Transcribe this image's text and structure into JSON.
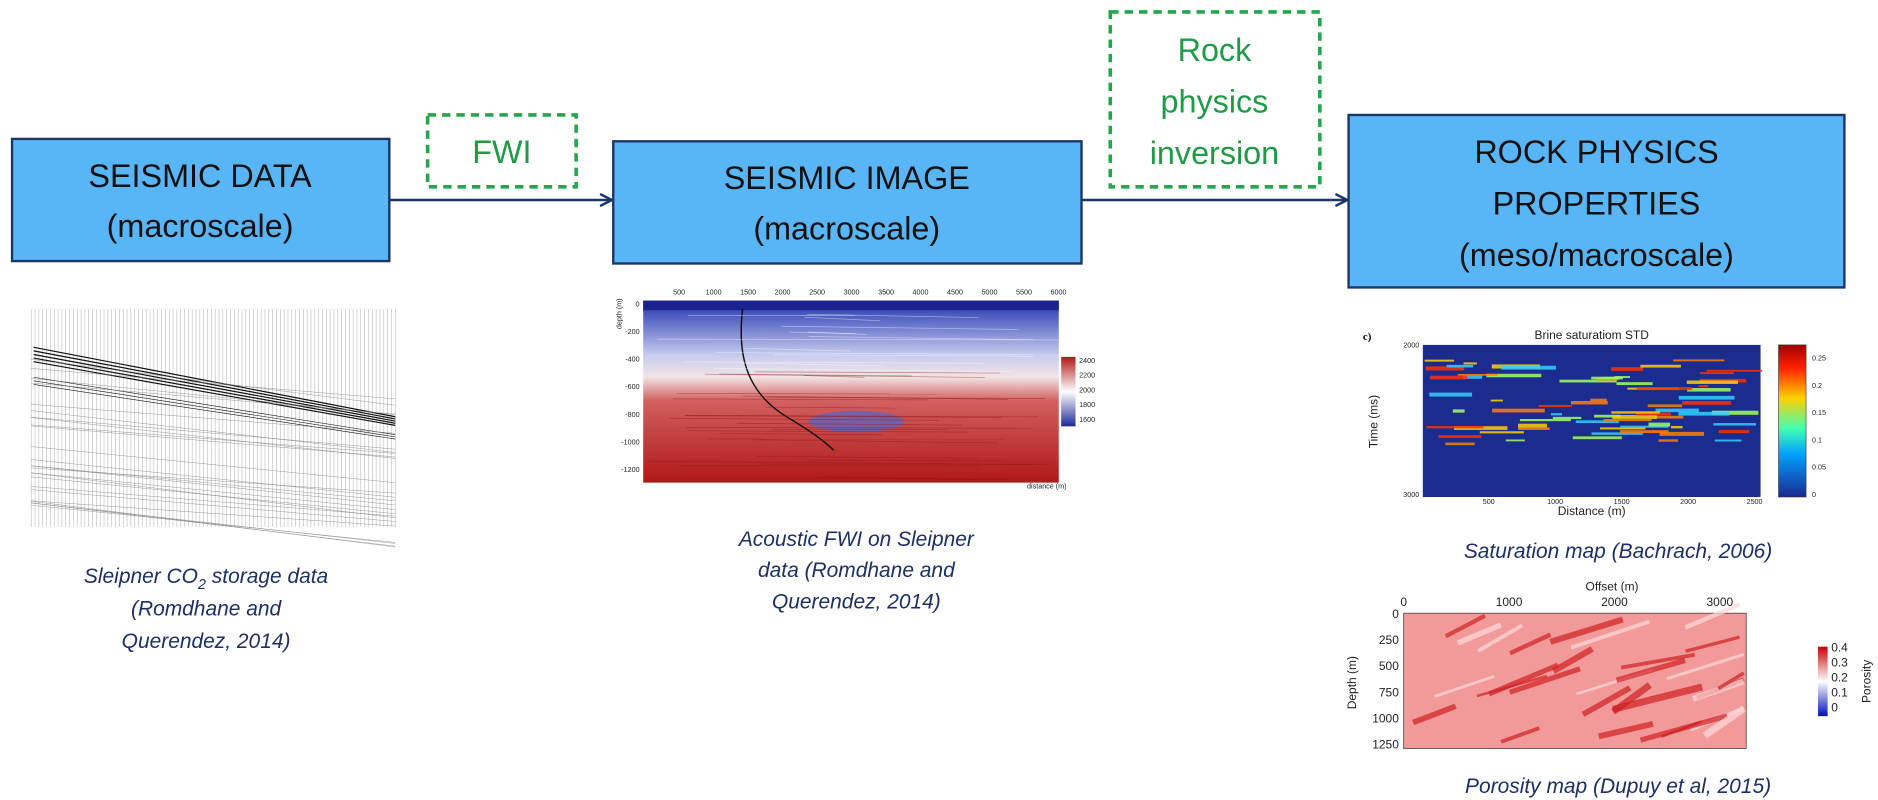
{
  "boxes": [
    {
      "lines": [
        "SEISMIC DATA",
        "(macroscale)"
      ]
    },
    {
      "lines": [
        "SEISMIC IMAGE",
        "(macroscale)"
      ]
    },
    {
      "lines": [
        "ROCK PHYSICS",
        "PROPERTIES",
        "(meso/macroscale)"
      ]
    }
  ],
  "steps": [
    {
      "lines": [
        "FWI"
      ]
    },
    {
      "lines": [
        "Rock",
        "physics",
        "inversion"
      ]
    }
  ],
  "captions": [
    {
      "first_line": {
        "before": "Sleipner CO",
        "subscript": "2",
        "after": " storage data"
      },
      "lines": [
        "(Romdhane and",
        "Querendez, 2014)"
      ]
    },
    {
      "lines": [
        "Acoustic FWI on Sleipner",
        "data (Romdhane and",
        "Querendez, 2014)"
      ]
    },
    {
      "lines": [
        "Saturation map (Bachrach, 2006)"
      ]
    },
    {
      "lines": [
        "Porosity map (Dupuy et al, 2015)"
      ]
    }
  ],
  "fwi_image": {
    "x_label": "distance (m)",
    "y_label": "depth (m)",
    "xticks": [
      500,
      1000,
      1500,
      2000,
      2500,
      3000,
      3500,
      4000,
      4500,
      5000,
      5500,
      6000
    ],
    "yticks": [
      0,
      -200,
      -400,
      -600,
      -800,
      -1000,
      -1200
    ],
    "colorbar_ticks": [
      2400,
      2200,
      2000,
      1800,
      1600
    ]
  },
  "saturation_map": {
    "panel": "c)",
    "title": "Brine saturatiom STD",
    "x_label": "Distance (m)",
    "y_label": "Time (ms)",
    "xticks": [
      500,
      1000,
      1500,
      2000,
      2500
    ],
    "yticks": [
      2000,
      3000
    ],
    "colorbar_ticks": [
      0.25,
      0.2,
      0.15,
      0.1,
      0.05,
      0
    ]
  },
  "porosity_map": {
    "x_label": "Offset (m)",
    "y_label": "Depth (m)",
    "colorbar_label": "Porosity",
    "xticks": [
      0,
      1000,
      2000,
      3000
    ],
    "yticks": [
      0,
      250,
      500,
      750,
      1000,
      1250
    ],
    "colorbar_ticks": [
      0.4,
      0.3,
      0.2,
      0.1,
      0
    ]
  }
}
